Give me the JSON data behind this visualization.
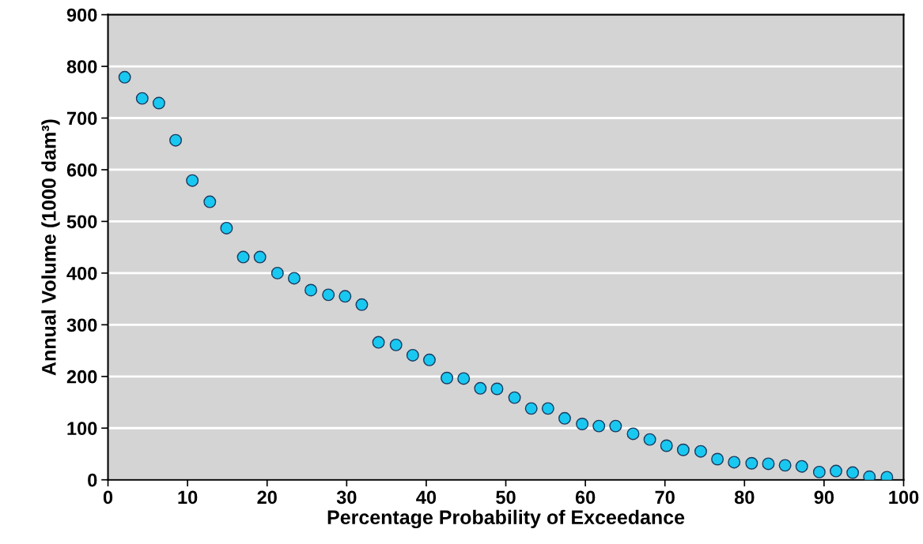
{
  "chart_data": {
    "type": "scatter",
    "xlabel": "Percentage Probability of Exceedance",
    "ylabel": "Annual Volume (1000 dam³)",
    "x": [
      2.1,
      4.3,
      6.4,
      8.5,
      10.6,
      12.8,
      14.9,
      17.0,
      19.1,
      21.3,
      23.4,
      25.5,
      27.7,
      29.8,
      31.9,
      34.0,
      36.2,
      38.3,
      40.4,
      42.6,
      44.7,
      46.8,
      48.9,
      51.1,
      53.2,
      55.3,
      57.4,
      59.6,
      61.7,
      63.8,
      66.0,
      68.1,
      70.2,
      72.3,
      74.5,
      76.6,
      78.7,
      80.9,
      83.0,
      85.1,
      87.2,
      89.4,
      91.5,
      93.6,
      95.7,
      97.9
    ],
    "series": [
      {
        "color": "#19c8f0",
        "values": [
          779,
          738,
          729,
          657,
          579,
          538,
          487,
          431,
          431,
          400,
          390,
          367,
          358,
          355,
          339,
          266,
          261,
          241,
          232,
          197,
          196,
          177,
          176,
          159,
          138,
          138,
          119,
          108,
          104,
          104,
          89,
          78,
          66,
          58,
          55,
          40,
          34,
          32,
          31,
          28,
          26,
          15,
          17,
          14,
          6,
          5
        ]
      }
    ],
    "xlim": [
      0,
      100
    ],
    "xticks": [
      0,
      10,
      20,
      30,
      40,
      50,
      60,
      70,
      80,
      90,
      100
    ],
    "ylim": [
      0,
      900
    ],
    "yticks": [
      0,
      100,
      200,
      300,
      400,
      500,
      600,
      700,
      800,
      900
    ],
    "grid": "y",
    "marker": "circle",
    "legend": false
  }
}
